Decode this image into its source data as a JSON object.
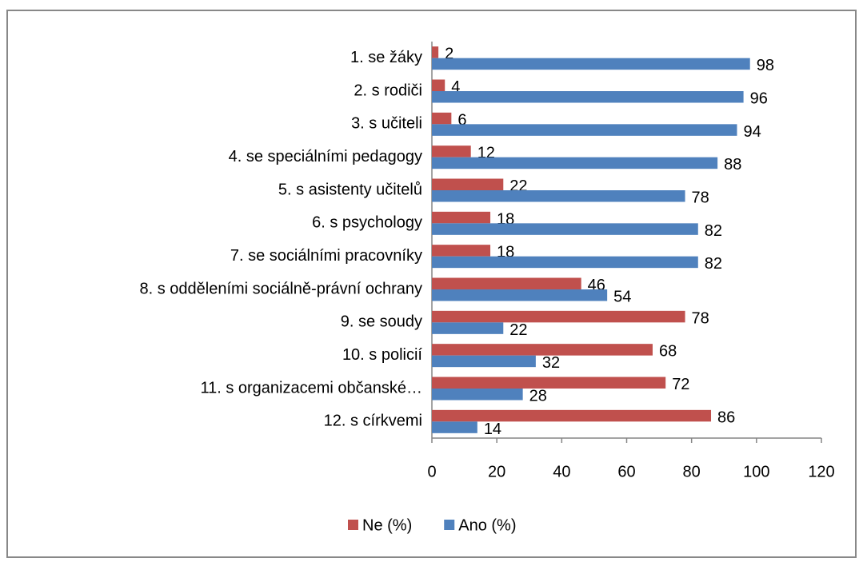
{
  "chart_data": {
    "type": "bar",
    "orientation": "horizontal",
    "categories": [
      "1. se žáky",
      "2. s rodiči",
      "3. s učiteli",
      "4. se speciálními pedagogy",
      "5. s asistenty učitelů",
      "6. s psychology",
      "7. se sociálními pracovníky",
      "8. s odděleními sociálně-právní ochrany",
      "9. se soudy",
      "10. s policií",
      "11. s organizacemi občanské…",
      "12. s církvemi"
    ],
    "series": [
      {
        "name": "Ne (%)",
        "color": "#c0504d",
        "values": [
          2,
          4,
          6,
          12,
          22,
          18,
          18,
          46,
          78,
          68,
          72,
          86
        ]
      },
      {
        "name": "Ano (%)",
        "color": "#4f81bd",
        "values": [
          98,
          96,
          94,
          88,
          78,
          82,
          82,
          54,
          22,
          32,
          28,
          14
        ]
      }
    ],
    "xlim": [
      0,
      120
    ],
    "xticks": [
      0,
      20,
      40,
      60,
      80,
      100,
      120
    ],
    "grid": false,
    "legend": "bottom"
  }
}
